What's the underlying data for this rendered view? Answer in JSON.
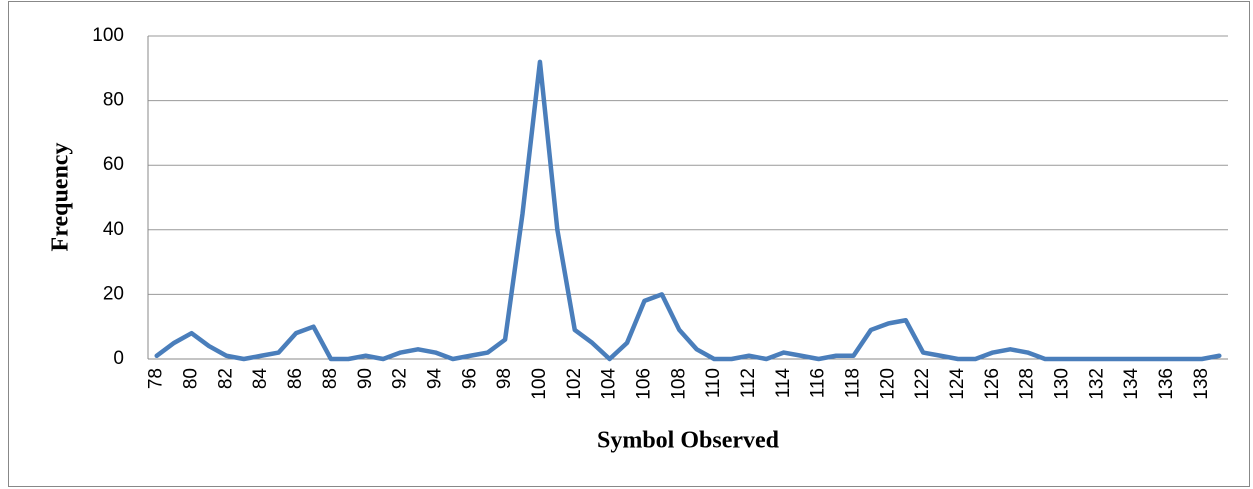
{
  "chart_data": {
    "type": "line",
    "x_label": "Symbol Observed",
    "y_label": "Frequency",
    "categories": [
      "78",
      null,
      "80",
      null,
      "82",
      null,
      "84",
      null,
      "86",
      null,
      "88",
      null,
      "90",
      null,
      "92",
      null,
      "94",
      null,
      "96",
      null,
      "98",
      null,
      "100",
      null,
      "102",
      null,
      "104",
      null,
      "106",
      null,
      "108",
      null,
      "110",
      null,
      "112",
      null,
      "114",
      null,
      "116",
      null,
      "118",
      null,
      "120",
      null,
      "122",
      null,
      "124",
      null,
      "126",
      null,
      "128",
      null,
      "130",
      null,
      "132",
      null,
      "134",
      null,
      "136",
      null,
      "138",
      null
    ],
    "values": [
      1,
      5,
      8,
      4,
      1,
      0,
      1,
      2,
      8,
      10,
      0,
      0,
      1,
      0,
      2,
      3,
      2,
      0,
      1,
      2,
      6,
      45,
      92,
      40,
      9,
      5,
      0,
      5,
      18,
      20,
      9,
      3,
      0,
      0,
      1,
      0,
      2,
      1,
      0,
      1,
      1,
      9,
      11,
      12,
      2,
      1,
      0,
      0,
      2,
      3,
      2,
      0,
      0,
      0,
      0,
      0,
      0,
      0,
      0,
      0,
      0,
      1
    ],
    "color": "#4a7ebb",
    "ylim": [
      0,
      100
    ],
    "yticks": [
      0,
      20,
      40,
      60,
      80,
      100
    ],
    "grid": true
  }
}
